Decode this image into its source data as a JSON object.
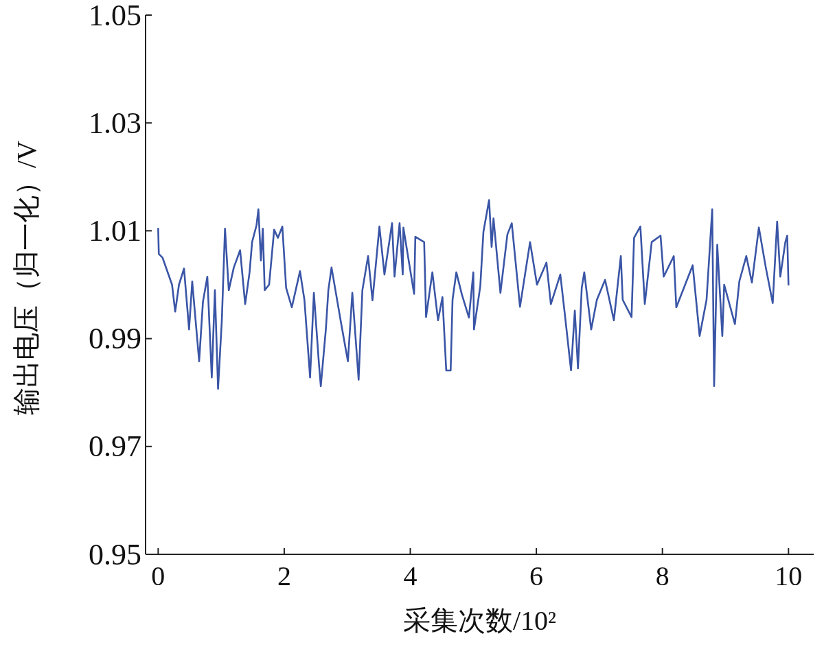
{
  "chart_data": {
    "type": "line",
    "xlabel": "采集次数/10²",
    "ylabel": "输出电压（归一化）/V",
    "xlim": [
      -0.2,
      10.4
    ],
    "ylim": [
      0.95,
      1.05
    ],
    "xticks": [
      0,
      2,
      4,
      6,
      8,
      10
    ],
    "yticks": [
      0.95,
      0.97,
      0.99,
      1.01,
      1.03,
      1.05
    ],
    "x": [
      0.0,
      0.01,
      0.07,
      0.22,
      0.27,
      0.33,
      0.41,
      0.49,
      0.54,
      0.65,
      0.71,
      0.78,
      0.85,
      0.9,
      0.95,
      1.01,
      1.06,
      1.12,
      1.2,
      1.3,
      1.38,
      1.45,
      1.49,
      1.56,
      1.59,
      1.63,
      1.66,
      1.69,
      1.76,
      1.84,
      1.9,
      1.97,
      2.03,
      2.12,
      2.25,
      2.32,
      2.41,
      2.47,
      2.55,
      2.58,
      2.66,
      2.7,
      2.75,
      2.9,
      3.01,
      3.08,
      3.18,
      3.24,
      3.33,
      3.4,
      3.51,
      3.59,
      3.71,
      3.75,
      3.83,
      3.88,
      3.89,
      4.06,
      4.08,
      4.22,
      4.25,
      4.35,
      4.44,
      4.51,
      4.57,
      4.64,
      4.67,
      4.73,
      4.82,
      4.93,
      5.0,
      5.01,
      5.11,
      5.16,
      5.25,
      5.29,
      5.32,
      5.43,
      5.54,
      5.61,
      5.74,
      5.9,
      6.01,
      6.16,
      6.23,
      6.38,
      6.45,
      6.55,
      6.61,
      6.66,
      6.72,
      6.76,
      6.87,
      6.96,
      7.09,
      7.23,
      7.34,
      7.37,
      7.51,
      7.55,
      7.65,
      7.72,
      7.83,
      7.97,
      8.02,
      8.18,
      8.22,
      8.48,
      8.59,
      8.7,
      8.79,
      8.82,
      8.87,
      8.95,
      8.98,
      9.15,
      9.22,
      9.33,
      9.42,
      9.53,
      9.64,
      9.75,
      9.82,
      9.87,
      9.95,
      9.98,
      10.0
    ],
    "series": [
      {
        "color": "#3a55a6",
        "values": [
          1.0104,
          1.0057,
          1.005,
          1.0,
          0.995,
          1.0,
          1.003,
          0.9917,
          1.0006,
          0.9858,
          0.9968,
          1.0015,
          0.9828,
          0.999,
          0.9807,
          0.9934,
          1.0104,
          0.999,
          1.0032,
          1.0064,
          0.9964,
          1.0023,
          1.0079,
          1.011,
          1.014,
          1.0045,
          1.0104,
          0.999,
          1.0,
          1.0102,
          1.0087,
          1.0108,
          0.9994,
          0.9958,
          1.0025,
          0.9972,
          0.9828,
          0.9985,
          0.9854,
          0.9812,
          0.9917,
          0.999,
          1.0032,
          0.993,
          0.9858,
          0.9985,
          0.9824,
          0.999,
          1.0053,
          0.9971,
          1.0108,
          1.0019,
          1.0114,
          1.0015,
          1.0114,
          1.0019,
          1.0106,
          0.9983,
          1.0089,
          1.0079,
          0.994,
          1.0023,
          0.9934,
          0.9977,
          0.9841,
          0.9841,
          0.9972,
          1.0023,
          0.9981,
          0.9939,
          1.0023,
          0.9917,
          0.9997,
          1.0098,
          1.0157,
          1.007,
          1.0123,
          0.9985,
          1.0093,
          1.0114,
          0.9959,
          1.0079,
          1.0,
          1.0041,
          0.9964,
          1.0019,
          0.9947,
          0.9841,
          0.9952,
          0.9845,
          0.9994,
          1.0023,
          0.9917,
          0.9972,
          1.0009,
          0.9934,
          1.0053,
          0.9972,
          0.994,
          1.0087,
          1.0108,
          0.9964,
          1.0079,
          1.0091,
          1.0015,
          1.0053,
          0.9958,
          1.0036,
          0.9905,
          0.9972,
          1.014,
          0.9812,
          1.0074,
          0.9905,
          1.0,
          0.9927,
          1.0006,
          1.0053,
          1.0004,
          1.0106,
          1.0032,
          0.9966,
          1.0117,
          1.0015,
          1.0079,
          1.0091,
          1.0
        ]
      }
    ]
  }
}
